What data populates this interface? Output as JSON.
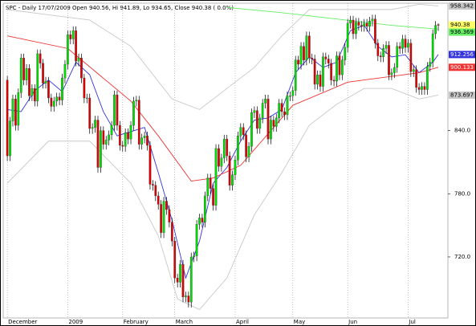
{
  "chart_data": {
    "type": "candlestick",
    "title": "SPC - Daily 17/07/2009 Open 940.56, Hi 941.89, Lo 934.65, Close 940.38 ( 0.0%)",
    "up_color": "#00dd00",
    "down_color": "#dd0000",
    "close_label_color": "#ffff66",
    "xlim": [
      -1.5,
      160.5
    ],
    "xticks": [
      {
        "value": 0,
        "label": "December"
      },
      {
        "value": 22,
        "label": "2009"
      },
      {
        "value": 42,
        "label": "February"
      },
      {
        "value": 61,
        "label": "March"
      },
      {
        "value": 83,
        "label": "April"
      },
      {
        "value": 104,
        "label": "May"
      },
      {
        "value": 124,
        "label": "Jun"
      },
      {
        "value": 146,
        "label": "Jul"
      }
    ],
    "ylim": [
      662,
      961
    ],
    "yticks": [
      {
        "value": 720,
        "label": "720.0"
      },
      {
        "value": 780,
        "label": "780.0"
      },
      {
        "value": 840,
        "label": "840.0"
      }
    ],
    "grid": true,
    "open": [
      888,
      816,
      849,
      870,
      845,
      876,
      909,
      888,
      899,
      873,
      880,
      868,
      913,
      904,
      885,
      887,
      871,
      863,
      868,
      872,
      869,
      890,
      903,
      931,
      927,
      935,
      906,
      909,
      890,
      871,
      871,
      842,
      843,
      850,
      805,
      840,
      827,
      831,
      836,
      845,
      874,
      845,
      826,
      825,
      838,
      832,
      845,
      868,
      869,
      827,
      833,
      835,
      826,
      789,
      788,
      778,
      770,
      743,
      773,
      765,
      753,
      735,
      700,
      696,
      713,
      682,
      683,
      677,
      720,
      721,
      751,
      757,
      753,
      778,
      795,
      785,
      769,
      823,
      806,
      814,
      832,
      816,
      788,
      798,
      812,
      835,
      843,
      836,
      815,
      825,
      857,
      859,
      842,
      852,
      866,
      870,
      832,
      850,
      844,
      852,
      866,
      858,
      855,
      873,
      873,
      878,
      907,
      903,
      920,
      907,
      930,
      909,
      908,
      884,
      893,
      882,
      910,
      908,
      904,
      888,
      887,
      911,
      893,
      907,
      919,
      942,
      945,
      932,
      943,
      940,
      939,
      942,
      939,
      944,
      946,
      923,
      911,
      910,
      918,
      921,
      893,
      895,
      900,
      920,
      918,
      927,
      919,
      923,
      896,
      898,
      881,
      879,
      882,
      879,
      901,
      905,
      932,
      940.56
    ],
    "high": [
      892,
      853,
      874,
      874,
      880,
      913,
      913,
      903,
      903,
      884,
      884,
      917,
      917,
      908,
      891,
      891,
      875,
      872,
      876,
      876,
      894,
      907,
      935,
      935,
      939,
      939,
      913,
      913,
      894,
      875,
      875,
      847,
      854,
      854,
      844,
      844,
      835,
      840,
      849,
      878,
      878,
      849,
      830,
      842,
      842,
      849,
      872,
      873,
      873,
      837,
      839,
      839,
      830,
      793,
      792,
      782,
      774,
      777,
      777,
      769,
      757,
      739,
      704,
      717,
      717,
      687,
      687,
      724,
      725,
      755,
      761,
      761,
      782,
      799,
      799,
      789,
      827,
      827,
      818,
      836,
      836,
      820,
      802,
      816,
      839,
      847,
      847,
      840,
      829,
      861,
      863,
      863,
      856,
      870,
      874,
      874,
      854,
      854,
      856,
      870,
      870,
      862,
      877,
      877,
      882,
      911,
      911,
      924,
      924,
      934,
      934,
      913,
      912,
      897,
      897,
      914,
      914,
      912,
      908,
      892,
      915,
      915,
      911,
      923,
      946,
      949,
      949,
      947,
      947,
      944,
      946,
      946,
      948,
      950,
      950,
      927,
      915,
      922,
      925,
      925,
      899,
      904,
      924,
      924,
      931,
      931,
      927,
      927,
      902,
      902,
      885,
      886,
      886,
      905,
      909,
      936,
      944,
      941.89
    ],
    "low": [
      811,
      811,
      844,
      840,
      840,
      871,
      883,
      883,
      868,
      868,
      863,
      863,
      899,
      880,
      880,
      866,
      858,
      858,
      863,
      864,
      864,
      885,
      898,
      922,
      922,
      901,
      901,
      885,
      866,
      866,
      837,
      837,
      838,
      800,
      800,
      822,
      822,
      826,
      831,
      840,
      840,
      821,
      820,
      820,
      827,
      827,
      840,
      863,
      822,
      822,
      828,
      821,
      784,
      783,
      773,
      765,
      738,
      738,
      760,
      748,
      730,
      695,
      691,
      691,
      677,
      677,
      672,
      672,
      715,
      716,
      746,
      748,
      748,
      773,
      780,
      764,
      764,
      801,
      801,
      809,
      811,
      783,
      783,
      793,
      807,
      830,
      831,
      810,
      810,
      820,
      852,
      837,
      837,
      847,
      861,
      827,
      827,
      839,
      839,
      847,
      853,
      850,
      850,
      868,
      868,
      873,
      898,
      898,
      902,
      902,
      904,
      903,
      879,
      879,
      877,
      877,
      903,
      899,
      883,
      882,
      882,
      888,
      888,
      902,
      914,
      937,
      927,
      927,
      935,
      934,
      934,
      934,
      934,
      939,
      918,
      906,
      905,
      905,
      913,
      888,
      888,
      890,
      895,
      913,
      913,
      914,
      914,
      891,
      891,
      876,
      874,
      874,
      874,
      874,
      896,
      900,
      927,
      934.65
    ],
    "close": [
      816,
      849,
      870,
      845,
      876,
      909,
      888,
      899,
      873,
      880,
      868,
      913,
      904,
      885,
      887,
      871,
      863,
      868,
      872,
      869,
      890,
      903,
      931,
      927,
      935,
      906,
      909,
      890,
      871,
      871,
      842,
      843,
      850,
      805,
      840,
      827,
      831,
      836,
      845,
      874,
      845,
      826,
      825,
      838,
      832,
      845,
      868,
      869,
      827,
      833,
      835,
      826,
      789,
      788,
      778,
      770,
      743,
      773,
      765,
      753,
      735,
      700,
      696,
      713,
      682,
      683,
      677,
      720,
      721,
      751,
      757,
      753,
      778,
      795,
      785,
      769,
      823,
      806,
      814,
      832,
      816,
      788,
      798,
      812,
      835,
      843,
      836,
      815,
      825,
      857,
      859,
      842,
      852,
      866,
      870,
      832,
      850,
      844,
      852,
      866,
      858,
      855,
      873,
      873,
      878,
      907,
      903,
      920,
      907,
      930,
      909,
      908,
      884,
      893,
      882,
      910,
      908,
      904,
      888,
      887,
      911,
      893,
      907,
      919,
      942,
      945,
      932,
      943,
      940,
      939,
      942,
      939,
      944,
      946,
      923,
      911,
      910,
      918,
      921,
      893,
      895,
      900,
      920,
      918,
      927,
      919,
      923,
      896,
      898,
      881,
      879,
      882,
      879,
      901,
      905,
      932,
      940,
      940.38
    ],
    "overlays": [
      {
        "color": "#c8c8c8",
        "x": [
          0,
          15,
          30,
          45,
          60,
          70,
          80,
          90,
          100,
          110,
          120,
          130,
          140,
          150,
          157
        ],
        "values": [
          955,
          950,
          945,
          920,
          870,
          860,
          880,
          900,
          930,
          955,
          955,
          955,
          955,
          960,
          958.342
        ]
      },
      {
        "color": "#66ee66",
        "x": [
          80,
          100,
          120,
          140,
          157
        ],
        "values": [
          957,
          952,
          946,
          940,
          936.369
        ]
      },
      {
        "color": "#3333dd",
        "x": [
          0,
          5,
          10,
          15,
          20,
          25,
          30,
          35,
          40,
          45,
          50,
          55,
          60,
          65,
          70,
          75,
          80,
          85,
          90,
          95,
          100,
          105,
          110,
          115,
          120,
          125,
          130,
          135,
          140,
          145,
          150,
          155,
          157
        ],
        "values": [
          860,
          858,
          878,
          888,
          877,
          905,
          893,
          858,
          835,
          839,
          843,
          800,
          755,
          700,
          735,
          790,
          805,
          830,
          850,
          852,
          860,
          895,
          910,
          900,
          905,
          935,
          940,
          920,
          910,
          912,
          895,
          905,
          912.256
        ]
      },
      {
        "color": "#ee3333",
        "x": [
          0,
          22,
          45,
          55,
          67,
          75,
          85,
          104,
          124,
          150,
          157
        ],
        "values": [
          930,
          918,
          868,
          835,
          792,
          795,
          807,
          864,
          886,
          895,
          900.133
        ]
      },
      {
        "color": "#c8c8c8",
        "x": [
          0,
          15,
          30,
          45,
          55,
          62,
          70,
          80,
          90,
          100,
          110,
          120,
          130,
          140,
          150,
          157
        ],
        "values": [
          790,
          830,
          830,
          790,
          740,
          680,
          670,
          700,
          760,
          800,
          845,
          865,
          880,
          880,
          870,
          873.697
        ]
      }
    ]
  }
}
